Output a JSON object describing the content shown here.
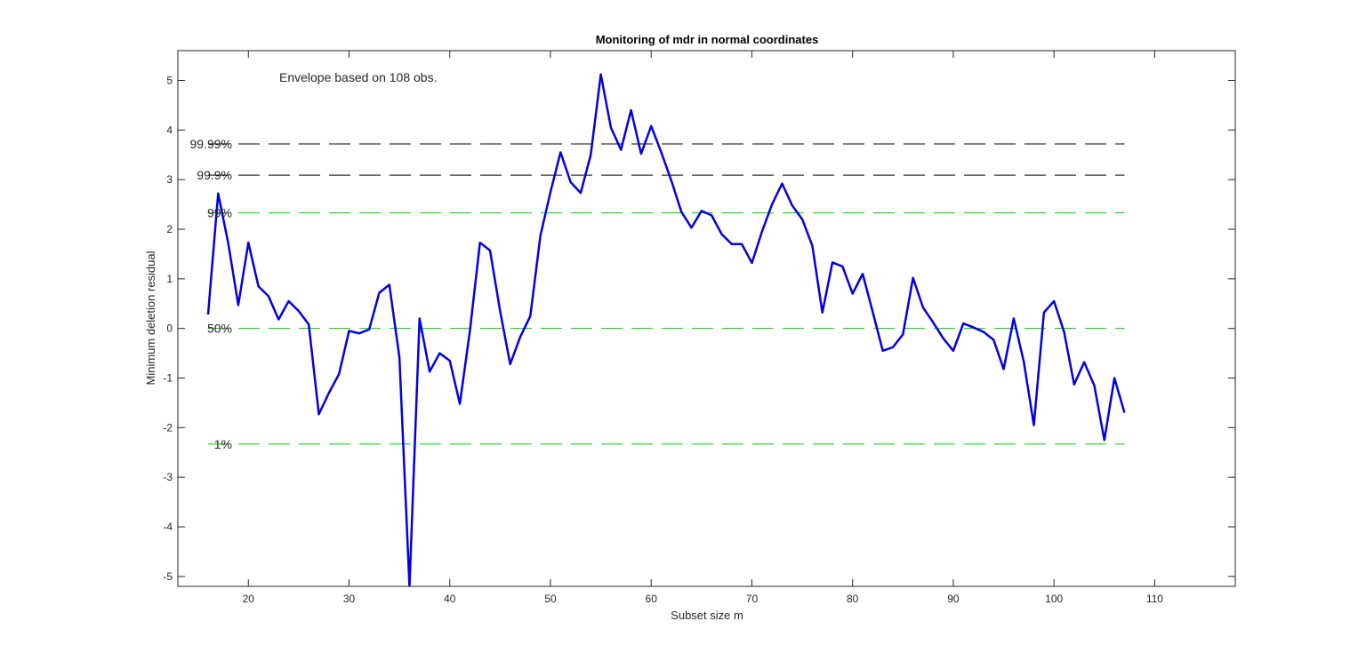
{
  "chart_data": {
    "type": "line",
    "title": "Monitoring of mdr in normal coordinates",
    "xlabel": "Subset size m",
    "ylabel": "Minimum deletion residual",
    "xlim": [
      13,
      118
    ],
    "ylim": [
      -5.2,
      5.6
    ],
    "xticks": [
      20,
      30,
      40,
      50,
      60,
      70,
      80,
      90,
      100,
      110
    ],
    "yticks": [
      -5,
      -4,
      -3,
      -2,
      -1,
      0,
      1,
      2,
      3,
      4,
      5
    ],
    "grid": false,
    "annotation": "Envelope based on 108 obs.",
    "envelopes": [
      {
        "label": "99.99%",
        "value": 3.72,
        "color": "#000000"
      },
      {
        "label": "99.9%",
        "value": 3.09,
        "color": "#000000"
      },
      {
        "label": "99%",
        "value": 2.33,
        "color": "#00cc00"
      },
      {
        "label": "50%",
        "value": 0.0,
        "color": "#00cc00"
      },
      {
        "label": "1%",
        "value": -2.33,
        "color": "#00cc00"
      }
    ],
    "envelope_x_range": [
      16,
      107
    ],
    "series": [
      {
        "color": "#0000e6",
        "x": [
          16,
          17,
          18,
          19,
          20,
          21,
          22,
          23,
          24,
          25,
          26,
          27,
          28,
          29,
          30,
          31,
          32,
          33,
          34,
          35,
          36,
          37,
          38,
          39,
          40,
          41,
          42,
          43,
          44,
          45,
          46,
          47,
          48,
          49,
          50,
          51,
          52,
          53,
          54,
          55,
          56,
          57,
          58,
          59,
          60,
          61,
          62,
          63,
          64,
          65,
          66,
          67,
          68,
          69,
          70,
          71,
          72,
          73,
          74,
          75,
          76,
          77,
          78,
          79,
          80,
          81,
          82,
          83,
          84,
          85,
          86,
          87,
          88,
          89,
          90,
          91,
          92,
          93,
          94,
          95,
          96,
          97,
          98,
          99,
          100,
          101,
          102,
          103,
          104,
          105,
          106,
          107
        ],
        "y": [
          0.28,
          2.72,
          1.72,
          0.47,
          1.73,
          0.85,
          0.65,
          0.18,
          0.55,
          0.35,
          0.08,
          -1.73,
          -1.3,
          -0.92,
          -0.05,
          -0.1,
          -0.02,
          0.72,
          0.88,
          -0.58,
          -5.2,
          0.2,
          -0.87,
          -0.5,
          -0.65,
          -1.52,
          -0.05,
          1.73,
          1.57,
          0.35,
          -0.72,
          -0.17,
          0.25,
          1.87,
          2.75,
          3.55,
          2.95,
          2.73,
          3.5,
          5.12,
          4.05,
          3.6,
          4.4,
          3.52,
          4.08,
          3.55,
          2.98,
          2.35,
          2.03,
          2.37,
          2.28,
          1.9,
          1.7,
          1.7,
          1.32,
          1.95,
          2.5,
          2.92,
          2.48,
          2.2,
          1.67,
          0.32,
          1.33,
          1.25,
          0.7,
          1.1,
          0.33,
          -0.45,
          -0.38,
          -0.12,
          1.02,
          0.42,
          0.12,
          -0.2,
          -0.45,
          0.1,
          0.02,
          -0.07,
          -0.23,
          -0.82,
          0.2,
          -0.67,
          -1.95,
          0.32,
          0.55,
          -0.07,
          -1.13,
          -0.68,
          -1.15,
          -2.25,
          -1.0,
          -1.7
        ]
      }
    ]
  }
}
